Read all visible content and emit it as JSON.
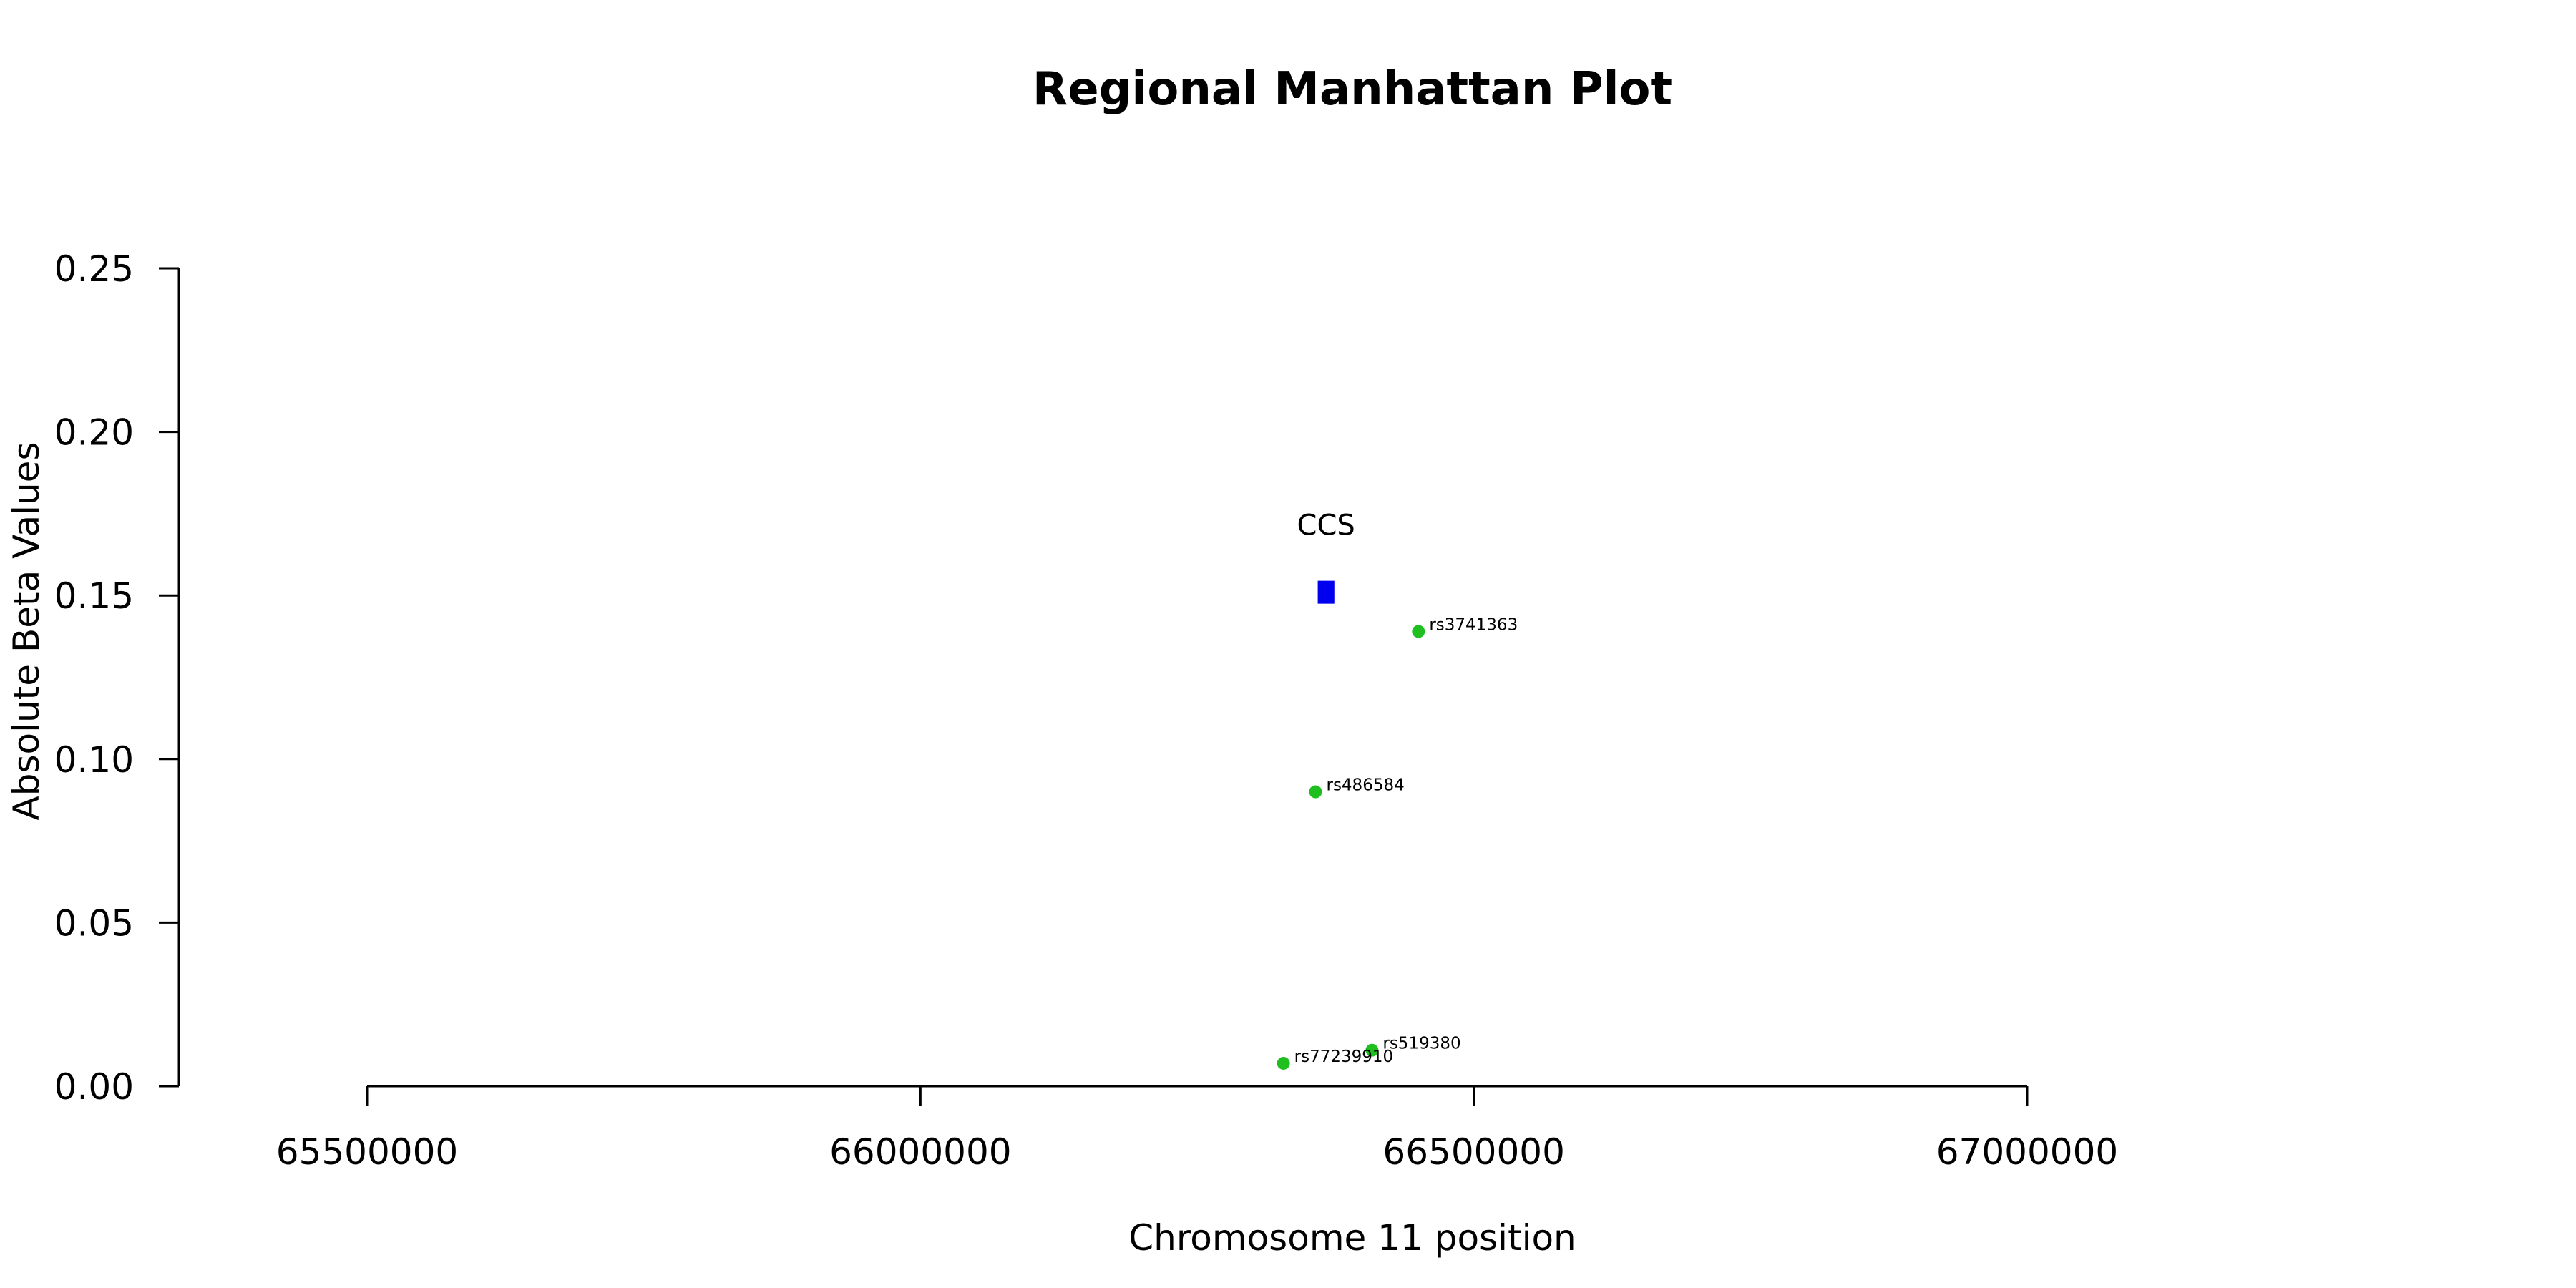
{
  "chart_data": {
    "type": "scatter",
    "title": "Regional Manhattan Plot",
    "xlabel": "Chromosome 11 position",
    "ylabel": "Absolute Beta Values",
    "xlim": [
      65500000,
      67000000
    ],
    "ylim": [
      0,
      0.25
    ],
    "x_ticks": [
      65500000,
      66000000,
      66500000,
      67000000
    ],
    "x_tick_labels": [
      "65500000",
      "66000000",
      "66500000",
      "67000000"
    ],
    "y_ticks": [
      0,
      0.05,
      0.1,
      0.15,
      0.2,
      0.25
    ],
    "y_tick_labels": [
      "0.00",
      "0.05",
      "0.10",
      "0.15",
      "0.20",
      "0.25"
    ],
    "grid": false,
    "snps": [
      {
        "label": "rs3741363",
        "x": 66450000,
        "y": 0.139
      },
      {
        "label": "rs486584",
        "x": 66357000,
        "y": 0.09
      },
      {
        "label": "rs519380",
        "x": 66408000,
        "y": 0.011
      },
      {
        "label": "rs77239910",
        "x": 66328000,
        "y": 0.007
      }
    ],
    "gene": {
      "label": "CCS",
      "x_start": 66359000,
      "x_end": 66374000,
      "y": 0.151
    },
    "colors": {
      "snp": "#1fbf1f",
      "gene": "#0000ee",
      "axis": "#000000"
    }
  }
}
